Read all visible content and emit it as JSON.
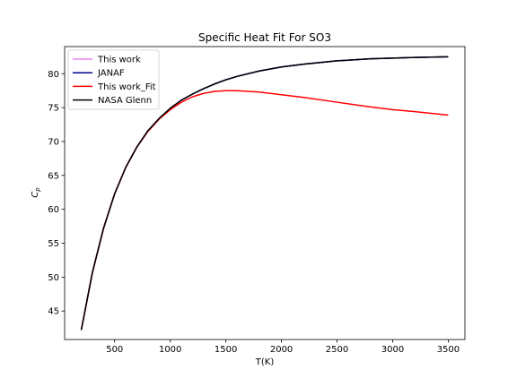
{
  "chart_data": {
    "type": "line",
    "title": "Specific Heat Fit For SO3",
    "xlabel": "T(K)",
    "ylabel": "C",
    "ylabel_sub": "p",
    "xlim": [
      50,
      3650
    ],
    "ylim": [
      40.8,
      84.0
    ],
    "xticks": [
      500,
      1000,
      1500,
      2000,
      2500,
      3000,
      3500
    ],
    "yticks": [
      45,
      50,
      55,
      60,
      65,
      70,
      75,
      80
    ],
    "grid": false,
    "legend_position": "upper-left",
    "series": [
      {
        "name": "This work",
        "color": "#ee82ee",
        "x": [
          200,
          300,
          400,
          500,
          600,
          700,
          800,
          900,
          1000,
          1100,
          1200,
          1300,
          1400,
          1500,
          1600,
          1800,
          2000,
          2200,
          2500,
          2800,
          3000,
          3200,
          3500
        ],
        "y": [
          42.2,
          50.7,
          57.2,
          62.3,
          66.2,
          69.2,
          71.6,
          73.4,
          74.9,
          76.1,
          77.0,
          77.8,
          78.5,
          79.1,
          79.6,
          80.4,
          81.0,
          81.4,
          81.9,
          82.2,
          82.3,
          82.4,
          82.5
        ]
      },
      {
        "name": "JANAF",
        "color": "#00008b",
        "x": [
          200,
          300,
          400,
          500,
          600,
          700,
          800,
          900,
          1000,
          1100,
          1200,
          1300,
          1400,
          1500,
          1600,
          1800,
          2000,
          2200,
          2500,
          2800,
          3000,
          3200,
          3500
        ],
        "y": [
          42.2,
          50.7,
          57.2,
          62.3,
          66.2,
          69.2,
          71.6,
          73.4,
          74.9,
          76.1,
          77.0,
          77.8,
          78.5,
          79.1,
          79.6,
          80.4,
          81.0,
          81.4,
          81.9,
          82.2,
          82.3,
          82.4,
          82.5
        ]
      },
      {
        "name": "This work_Fit",
        "color": "#ff0000",
        "x": [
          200,
          300,
          400,
          500,
          600,
          700,
          800,
          900,
          1000,
          1100,
          1200,
          1300,
          1400,
          1500,
          1600,
          1800,
          2000,
          2200,
          2500,
          2800,
          3000,
          3200,
          3500
        ],
        "y": [
          42.2,
          50.7,
          57.2,
          62.3,
          66.2,
          69.2,
          71.5,
          73.3,
          74.7,
          75.8,
          76.6,
          77.1,
          77.4,
          77.5,
          77.5,
          77.3,
          76.9,
          76.5,
          75.8,
          75.1,
          74.7,
          74.4,
          73.9
        ]
      },
      {
        "name": "NASA Glenn",
        "color": "#000000",
        "x": [
          200,
          300,
          400,
          500,
          600,
          700,
          800,
          900,
          1000,
          1100,
          1200,
          1300,
          1400,
          1500,
          1600,
          1800,
          2000,
          2200,
          2500,
          2800,
          3000,
          3200,
          3500
        ],
        "y": [
          42.2,
          50.7,
          57.2,
          62.3,
          66.2,
          69.2,
          71.6,
          73.4,
          74.9,
          76.1,
          77.0,
          77.8,
          78.5,
          79.1,
          79.6,
          80.4,
          81.0,
          81.4,
          81.9,
          82.2,
          82.3,
          82.4,
          82.5
        ]
      }
    ]
  }
}
